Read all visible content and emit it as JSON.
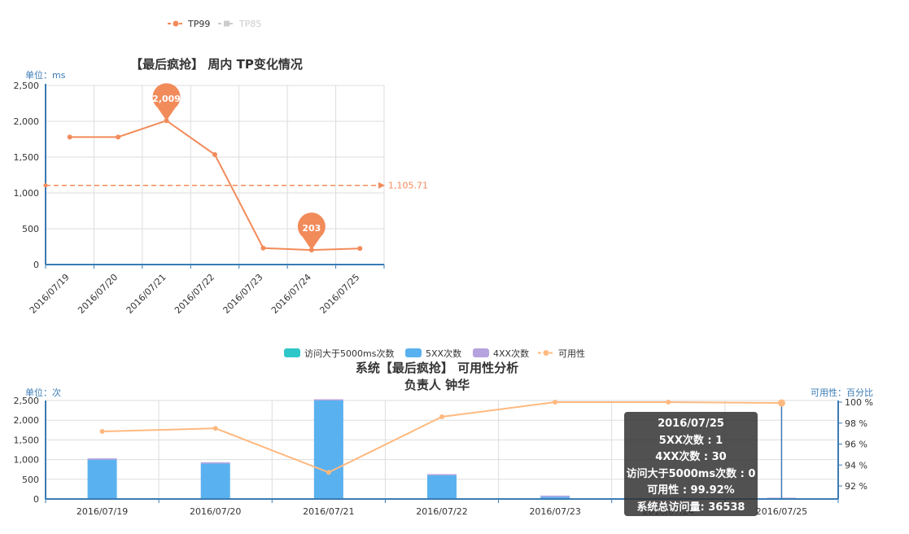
{
  "chart_data": [
    {
      "type": "line",
      "title": "【最后疯抢】 周内 TP变化情况",
      "unit_label": "单位：ms",
      "legend": [
        {
          "name": "TP99",
          "color": "#f28b5a",
          "active": true
        },
        {
          "name": "TP85",
          "color": "#cccccc",
          "active": false
        }
      ],
      "categories": [
        "2016/07/19",
        "2016/07/20",
        "2016/07/21",
        "2016/07/22",
        "2016/07/23",
        "2016/07/24",
        "2016/07/25"
      ],
      "series": [
        {
          "name": "TP99",
          "color": "#f28b5a",
          "values": [
            1780,
            1780,
            2009,
            1535,
            230,
            203,
            225
          ]
        }
      ],
      "y_ticks": [
        "2,500",
        "2,000",
        "1,500",
        "1,000",
        "500",
        "0"
      ],
      "ylim": [
        0,
        2500
      ],
      "mark_points": [
        {
          "label": "2,009",
          "index": 2,
          "value": 2009
        },
        {
          "label": "203",
          "index": 5,
          "value": 203
        }
      ],
      "mark_line": {
        "label": "1,105.71",
        "value": 1105.71
      }
    },
    {
      "type": "bar",
      "title": "系统【最后疯抢】 可用性分析",
      "subtitle": "负责人 钟华",
      "left_unit_label": "单位：次",
      "right_unit_label": "可用性：百分比",
      "legend": [
        {
          "name": "访问大于5000ms次数",
          "color": "#2ec7c9"
        },
        {
          "name": "5XX次数",
          "color": "#5ab1ef"
        },
        {
          "name": "4XX次数",
          "color": "#b6a2de"
        },
        {
          "name": "可用性",
          "color": "#ffb980"
        }
      ],
      "categories": [
        "2016/07/19",
        "2016/07/20",
        "2016/07/21",
        "2016/07/22",
        "2016/07/23",
        "2016/07/24",
        "2016/07/25"
      ],
      "series": [
        {
          "name": "5XX次数",
          "color": "#5ab1ef",
          "values": [
            1000,
            900,
            2550,
            600,
            55,
            0,
            1
          ]
        },
        {
          "name": "4XX次数",
          "color": "#b6a2de",
          "values": [
            10,
            10,
            10,
            10,
            20,
            20,
            30
          ]
        },
        {
          "name": "访问大于5000ms次数",
          "color": "#2ec7c9",
          "values": [
            0,
            0,
            0,
            0,
            0,
            0,
            0
          ]
        },
        {
          "name": "可用性",
          "color": "#ffb980",
          "axis": "right",
          "values": [
            97.2,
            97.5,
            93.3,
            98.6,
            100,
            100,
            99.92
          ]
        }
      ],
      "y_ticks_left": [
        "2,500",
        "2,000",
        "1,500",
        "1,000",
        "500",
        "0"
      ],
      "ylim_left": [
        0,
        2500
      ],
      "y_ticks_right": [
        "100 %",
        "98 %",
        "96 %",
        "94 %",
        "92 %"
      ],
      "ylim_right": [
        92,
        100
      ],
      "tooltip": {
        "date": "2016/07/25",
        "lines": [
          "5XX次数 : 1",
          "4XX次数 : 30",
          "访问大于5000ms次数 : 0",
          "可用性 : 99.92%",
          "系统总访问量:  36538"
        ]
      }
    }
  ]
}
